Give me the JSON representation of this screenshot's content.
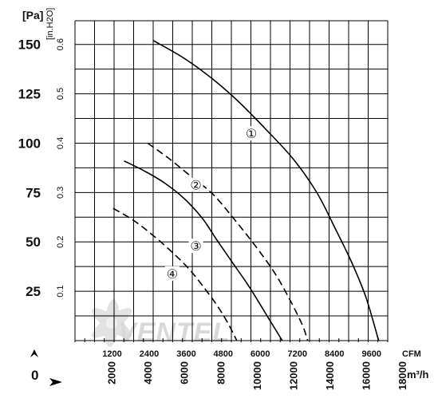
{
  "chart_data": {
    "type": "line",
    "title": "",
    "axes": {
      "y_left": {
        "unit": "[Pa]",
        "ticks": [
          "25",
          "50",
          "75",
          "100",
          "125",
          "150"
        ],
        "range": [
          0,
          162
        ]
      },
      "y_right": {
        "unit": "[in.H2O]",
        "ticks": [
          "0.1",
          "0.2",
          "0.3",
          "0.4",
          "0.5",
          "0.6"
        ]
      },
      "x_cfm": {
        "unit": "CFM",
        "ticks": [
          "1200",
          "2400",
          "3600",
          "4800",
          "6000",
          "7200",
          "8400",
          "9600"
        ]
      },
      "x_m3h": {
        "unit": "m³/h",
        "ticks": [
          "2000",
          "4000",
          "6000",
          "8000",
          "10000",
          "12000",
          "14000",
          "16000",
          "18000"
        ],
        "range": [
          0,
          17200
        ]
      },
      "y_arrow_label": "0",
      "grid": true
    },
    "series": [
      {
        "marker": "①",
        "style": "solid",
        "points": [
          [
            4300,
            152
          ],
          [
            6000,
            143
          ],
          [
            7500,
            133
          ],
          [
            9000,
            121
          ],
          [
            10500,
            107
          ],
          [
            12000,
            92
          ],
          [
            13300,
            75
          ],
          [
            14300,
            57
          ],
          [
            15200,
            40
          ],
          [
            16000,
            22
          ],
          [
            16700,
            0
          ]
        ],
        "marker_at": [
          9700,
          105
        ]
      },
      {
        "marker": "②",
        "style": "dashed",
        "points": [
          [
            4000,
            100
          ],
          [
            5200,
            92
          ],
          [
            6400,
            83
          ],
          [
            7600,
            74
          ],
          [
            8800,
            61
          ],
          [
            10000,
            47
          ],
          [
            11000,
            34
          ],
          [
            11800,
            21
          ],
          [
            12500,
            8
          ],
          [
            12800,
            0
          ]
        ],
        "marker_at": [
          6650,
          79
        ]
      },
      {
        "marker": "③",
        "style": "solid",
        "points": [
          [
            2700,
            91
          ],
          [
            3800,
            86
          ],
          [
            4900,
            80
          ],
          [
            6000,
            72
          ],
          [
            7000,
            62
          ],
          [
            7800,
            51
          ],
          [
            8700,
            39
          ],
          [
            9600,
            27
          ],
          [
            10600,
            12
          ],
          [
            11400,
            0
          ]
        ],
        "marker_at": [
          6650,
          48
        ]
      },
      {
        "marker": "④",
        "style": "dashed",
        "points": [
          [
            2100,
            67
          ],
          [
            3200,
            61
          ],
          [
            4200,
            54
          ],
          [
            5200,
            46
          ],
          [
            6200,
            37
          ],
          [
            7000,
            28
          ],
          [
            7800,
            18
          ],
          [
            8400,
            9
          ],
          [
            8900,
            0
          ]
        ],
        "marker_at": [
          5350,
          34
        ]
      }
    ]
  },
  "watermark": "VENTEL"
}
